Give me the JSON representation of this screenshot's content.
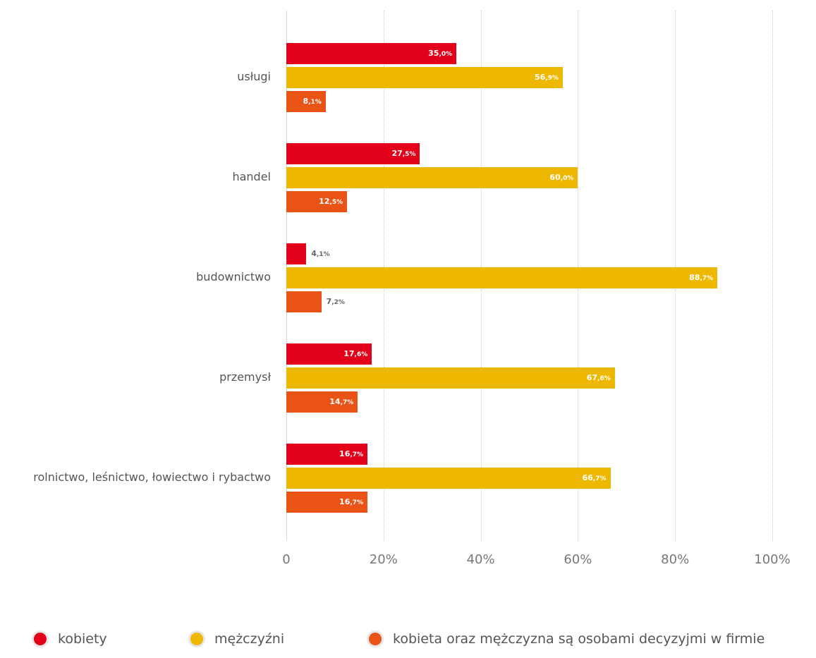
{
  "chart_data": {
    "type": "bar",
    "orientation": "horizontal",
    "categories": [
      "usługi",
      "handel",
      "budownictwo",
      "przemysł",
      "rolnictwo, leśnictwo, łowiectwo i rybactwo"
    ],
    "series": [
      {
        "name": "kobiety",
        "color": "#e2001a",
        "values": [
          35.0,
          27.5,
          4.1,
          17.6,
          16.7
        ],
        "labels": [
          "35,0%",
          "27,5%",
          "4,1%",
          "17,6%",
          "16,7%"
        ]
      },
      {
        "name": "mężczyźni",
        "color": "#efb800",
        "values": [
          56.9,
          60.0,
          88.7,
          67.6,
          66.7
        ],
        "labels": [
          "56,9%",
          "60,0%",
          "88,7%",
          "67,6%",
          "66,7%"
        ]
      },
      {
        "name": "kobieta oraz mężczyzna są osobami decyzyjmi w firmie",
        "color": "#e95316",
        "values": [
          8.1,
          12.5,
          7.2,
          14.7,
          16.7
        ],
        "labels": [
          "8,1%",
          "12,5%",
          "7,2%",
          "14,7%",
          "16,7%"
        ]
      }
    ],
    "xlim": [
      0,
      100
    ],
    "x_ticks": [
      "0",
      "20%",
      "40%",
      "60%",
      "80%",
      "100%"
    ],
    "grid": true,
    "legend_position": "bottom"
  }
}
